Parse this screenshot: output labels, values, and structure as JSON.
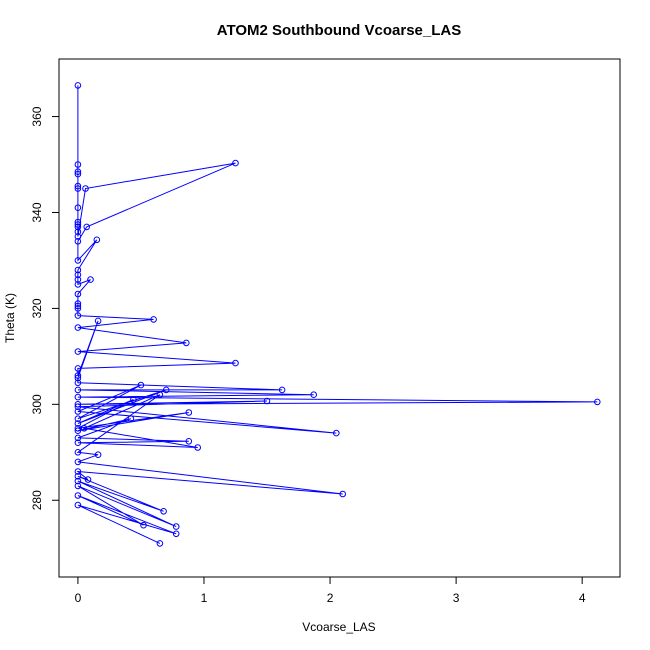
{
  "chart_data": {
    "type": "line",
    "title": "ATOM2 Southbound Vcoarse_LAS",
    "xlabel": "Vcoarse_LAS",
    "ylabel": "Theta (K)",
    "xlim": [
      -0.15,
      4.3
    ],
    "ylim": [
      264,
      372
    ],
    "xticks": [
      "0",
      "1",
      "2",
      "3",
      "4"
    ],
    "yticks": [
      "280",
      "300",
      "320",
      "340",
      "360"
    ],
    "grid": false,
    "legend": "none",
    "series": [
      {
        "color": "#0000ff",
        "marker": "open-circle",
        "x": [
          0.0,
          0.0,
          0.0,
          0.0,
          0.0,
          0.0,
          0.0,
          0.0,
          0.0,
          0.0,
          0.0,
          0.0,
          0.06,
          1.25,
          0.07,
          0.0,
          0.0,
          0.15,
          0.0,
          0.0,
          0.0,
          0.0,
          0.1,
          0.0,
          0.0,
          0.0,
          0.0,
          0.0,
          0.6,
          0.0,
          0.86,
          0.0,
          1.25,
          0.0,
          0.0,
          0.16,
          0.0,
          0.0,
          1.62,
          0.0,
          1.87,
          0.0,
          4.12,
          0.0,
          1.5,
          0.0,
          2.05,
          0.0,
          0.5,
          0.0,
          0.7,
          0.0,
          0.44,
          0.0,
          0.88,
          0.0,
          0.42,
          0.0,
          0.88,
          0.0,
          0.95,
          0.05,
          0.65,
          0.0,
          0.16,
          0.0,
          2.1,
          0.0,
          0.08,
          0.0,
          0.68,
          0.0,
          0.78,
          0.0,
          0.52,
          0.0,
          0.78,
          0.0,
          0.65
        ],
        "y": [
          366.5,
          350.0,
          348.5,
          348.0,
          345.5,
          345.0,
          341.0,
          338.0,
          337.5,
          337.0,
          336.0,
          335.0,
          345.0,
          350.3,
          337.0,
          334.0,
          330.0,
          334.3,
          328.0,
          327.0,
          326.0,
          325.0,
          326.0,
          323.0,
          321.0,
          320.5,
          320.0,
          318.5,
          317.7,
          316.0,
          312.8,
          311.0,
          308.6,
          307.5,
          306.0,
          317.4,
          305.5,
          304.5,
          303.0,
          303.0,
          302.0,
          301.5,
          300.5,
          300.0,
          300.7,
          299.5,
          294.0,
          298.5,
          304.0,
          297.0,
          303.0,
          296.0,
          301.0,
          295.0,
          298.3,
          294.5,
          297.0,
          293.0,
          292.3,
          292.0,
          291.0,
          295.0,
          302.0,
          290.0,
          289.5,
          288.0,
          281.3,
          286.0,
          284.3,
          285.0,
          277.7,
          284.0,
          274.5,
          283.0,
          274.8,
          281.0,
          273.0,
          279.0,
          271.0
        ]
      }
    ]
  }
}
